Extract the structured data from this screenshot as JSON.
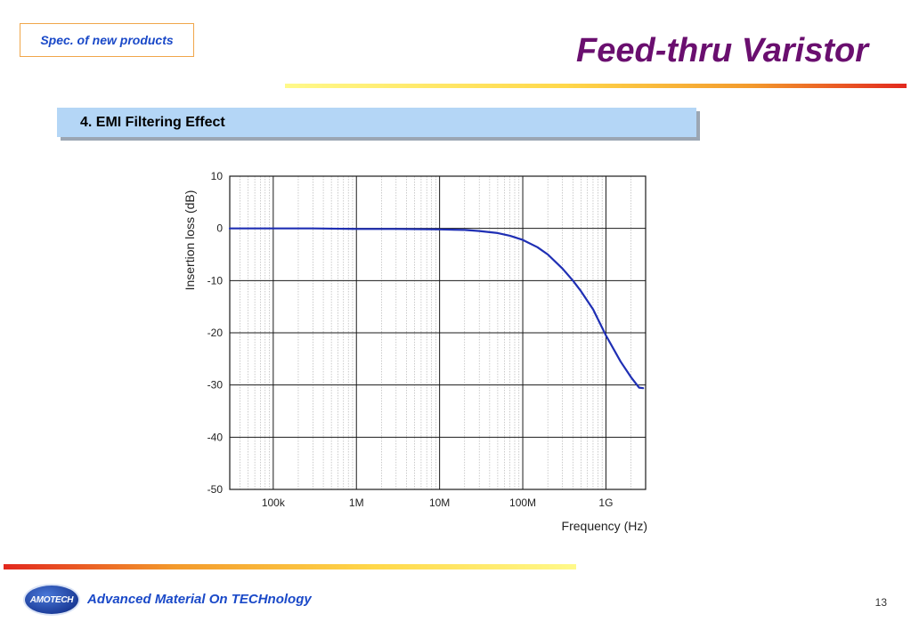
{
  "header": {
    "spec_label": "Spec. of new products",
    "title": "Feed-thru Varistor"
  },
  "section": {
    "label": "4. EMI Filtering Effect"
  },
  "chart_data": {
    "type": "line",
    "xlabel": "Frequency (Hz)",
    "ylabel": "Insertion loss (dB)",
    "x_scale": "log",
    "xlim": [
      30000,
      3000000000
    ],
    "ylim": [
      -50,
      10
    ],
    "x_ticks": [
      100000,
      1000000,
      10000000,
      100000000,
      1000000000
    ],
    "x_tick_labels": [
      "100k",
      "1M",
      "10M",
      "100M",
      "1G"
    ],
    "y_ticks": [
      10,
      0,
      -10,
      -20,
      -30,
      -40,
      -50
    ],
    "y_tick_labels": [
      "10",
      "0",
      "-10",
      "-20",
      "-30",
      "-40",
      "-50"
    ],
    "grid": true,
    "series_color": "#1f2fb4",
    "series": [
      {
        "x": [
          30000,
          100000,
          300000,
          1000000,
          3000000,
          10000000,
          20000000,
          30000000,
          50000000,
          70000000,
          100000000,
          150000000,
          200000000,
          300000000,
          400000000,
          500000000,
          700000000,
          1000000000,
          1500000000,
          2000000000,
          2500000000,
          2800000000
        ],
        "y": [
          0,
          0,
          0,
          -0.1,
          -0.1,
          -0.2,
          -0.3,
          -0.5,
          -0.9,
          -1.4,
          -2.2,
          -3.6,
          -5.0,
          -7.7,
          -10.0,
          -12.0,
          -15.5,
          -20.5,
          -25.5,
          -28.5,
          -30.5,
          -30.6
        ]
      }
    ]
  },
  "footer": {
    "logo_text": "AMOTECH",
    "tagline": "Advanced Material On TECHnology",
    "page_number": "13"
  }
}
